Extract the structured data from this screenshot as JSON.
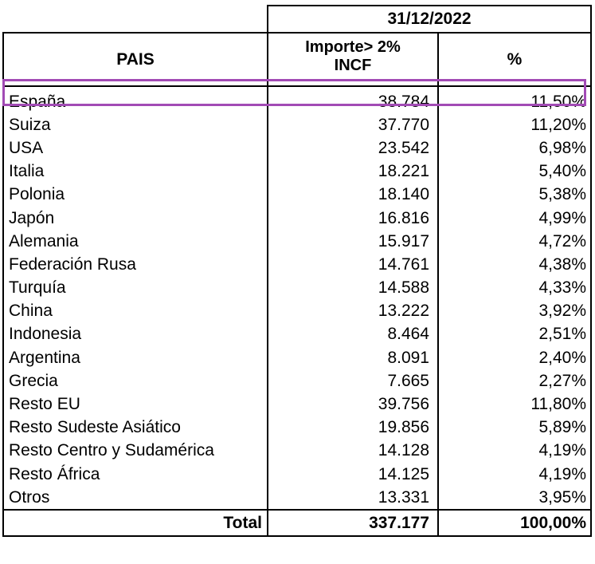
{
  "header": {
    "date": "31/12/2022",
    "col_pais": "PAIS",
    "col_importe_line1": "Importe> 2%",
    "col_importe_line2": "INCF",
    "col_pct": "%"
  },
  "rows": [
    {
      "pais": "España",
      "importe": "38.784",
      "pct": "11,50%"
    },
    {
      "pais": "Suiza",
      "importe": "37.770",
      "pct": "11,20%"
    },
    {
      "pais": "USA",
      "importe": "23.542",
      "pct": "6,98%"
    },
    {
      "pais": "Italia",
      "importe": "18.221",
      "pct": "5,40%"
    },
    {
      "pais": "Polonia",
      "importe": "18.140",
      "pct": "5,38%"
    },
    {
      "pais": "Japón",
      "importe": "16.816",
      "pct": "4,99%"
    },
    {
      "pais": "Alemania",
      "importe": "15.917",
      "pct": "4,72%"
    },
    {
      "pais": "Federación Rusa",
      "importe": "14.761",
      "pct": "4,38%"
    },
    {
      "pais": "Turquía",
      "importe": "14.588",
      "pct": "4,33%"
    },
    {
      "pais": "China",
      "importe": "13.222",
      "pct": "3,92%"
    },
    {
      "pais": "Indonesia",
      "importe": "8.464",
      "pct": "2,51%"
    },
    {
      "pais": "Argentina",
      "importe": "8.091",
      "pct": "2,40%"
    },
    {
      "pais": "Grecia",
      "importe": "7.665",
      "pct": "2,27%"
    },
    {
      "pais": "Resto EU",
      "importe": "39.756",
      "pct": "11,80%"
    },
    {
      "pais": "Resto Sudeste Asiático",
      "importe": "19.856",
      "pct": "5,89%"
    },
    {
      "pais": "Resto Centro y Sudamérica",
      "importe": "14.128",
      "pct": "4,19%"
    },
    {
      "pais": "Resto África",
      "importe": "14.125",
      "pct": "4,19%"
    },
    {
      "pais": "Otros",
      "importe": "13.331",
      "pct": "3,95%"
    }
  ],
  "total": {
    "label": "Total",
    "importe": "337.177",
    "pct": "100,00%"
  },
  "highlight": {
    "row": "España",
    "color": "#a24bb5"
  }
}
